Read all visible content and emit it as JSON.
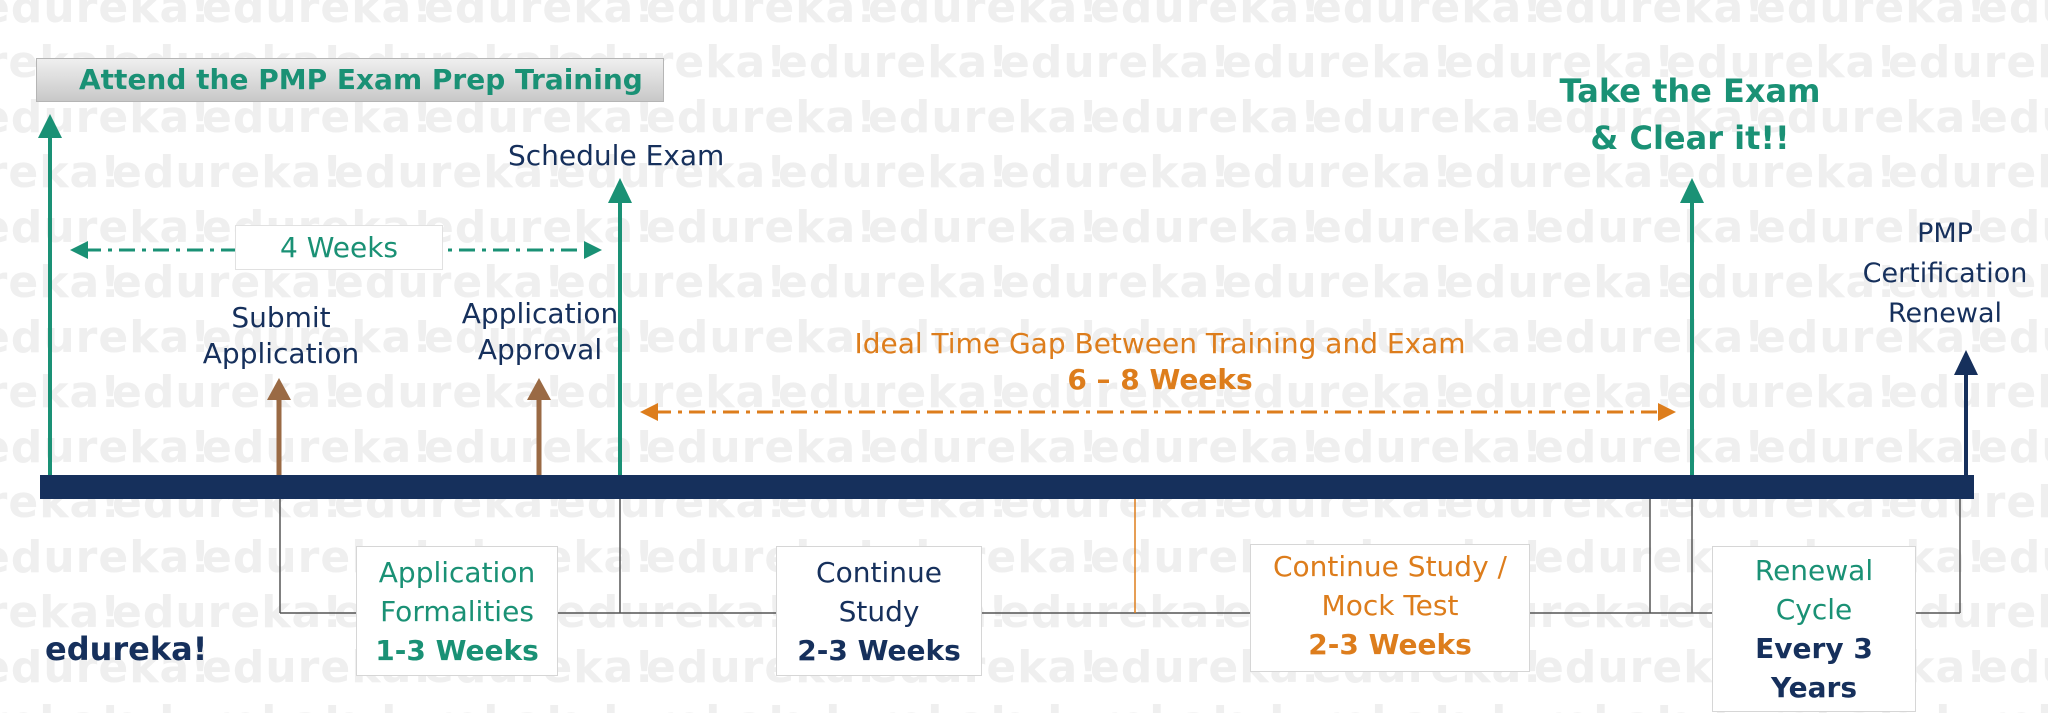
{
  "watermark": "edureka!",
  "logo": "edureka!",
  "title": "Attend the PMP Exam Prep Training",
  "duration_label": "4 Weeks",
  "milestones": {
    "submit_application": [
      "Submit",
      "Application"
    ],
    "application_approval": [
      "Application",
      "Approval"
    ],
    "schedule_exam": "Schedule Exam",
    "take_exam": [
      "Take the Exam",
      "& Clear it!!"
    ],
    "renewal": [
      "PMP",
      "Certification",
      "Renewal"
    ]
  },
  "gap": {
    "title": "Ideal Time Gap Between Training and Exam",
    "weeks": "6 – 8 Weeks"
  },
  "phases": [
    {
      "line1": "Application",
      "line2": "Formalities",
      "duration": "1-3 Weeks"
    },
    {
      "line1": "Continue",
      "line2": "Study",
      "duration": "2-3 Weeks"
    },
    {
      "line1": "Continue Study /",
      "line2": "Mock Test",
      "duration": "2-3 Weeks"
    },
    {
      "line1": "Renewal",
      "line2": "Cycle",
      "duration": "Every 3 Years"
    }
  ],
  "colors": {
    "teal": "#1a9175",
    "navy": "#16305c",
    "orange": "#dd7d1c",
    "brown": "#9a6a44"
  }
}
